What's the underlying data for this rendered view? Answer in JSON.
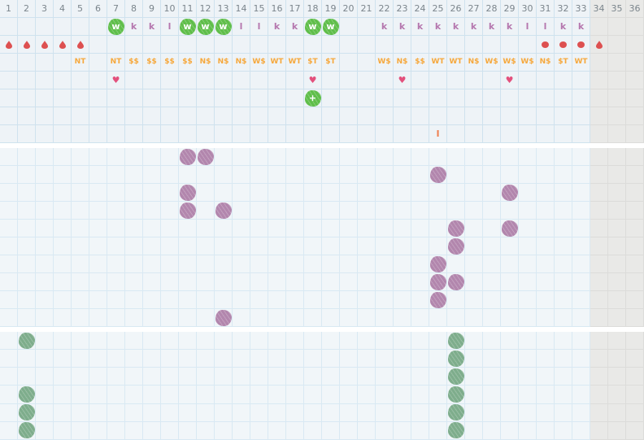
{
  "grid": {
    "days": [
      1,
      2,
      3,
      4,
      5,
      6,
      7,
      8,
      9,
      10,
      11,
      12,
      13,
      14,
      15,
      16,
      17,
      18,
      19,
      20,
      21,
      22,
      23,
      24,
      25,
      26,
      27,
      28,
      29,
      30,
      31,
      32,
      33,
      34,
      35,
      36
    ],
    "inactive_from_day": 34
  },
  "icons": {
    "heart_glyph": "♥"
  },
  "palette": {
    "cell_bg_top": "#eef3f7",
    "cell_bg": "#f1f6f9",
    "grid_line_top": "#cfe2ee",
    "grid_line": "#d9e9f3",
    "inactive_bg": "#e9e9e7",
    "inactive_line": "#dcdcda",
    "day_number": "#7b858c",
    "bright_green": "#5fbe4a",
    "mauve": "#b577ae",
    "red": "#dd5050",
    "orange": "#f6a83c",
    "pink": "#e3507c",
    "salmon": "#ef8052",
    "purple_mark": "#b286ad",
    "sage_mark": "#7ead8c"
  },
  "top_section": {
    "rows": [
      {
        "key": "day_numbers",
        "kind": "numbers",
        "cells": []
      },
      {
        "key": "cervical_fluid",
        "kind": "marks",
        "cells": [
          {
            "day": 7,
            "icon": "egg-white-blob-icon",
            "label": "w"
          },
          {
            "day": 8,
            "icon": "fluid-letter-label",
            "label": "k"
          },
          {
            "day": 9,
            "icon": "fluid-letter-label",
            "label": "k"
          },
          {
            "day": 10,
            "icon": "fluid-letter-label",
            "label": "l"
          },
          {
            "day": 11,
            "icon": "egg-white-blob-icon",
            "label": "w"
          },
          {
            "day": 12,
            "icon": "egg-white-blob-icon",
            "label": "w"
          },
          {
            "day": 13,
            "icon": "egg-white-blob-icon",
            "label": "w"
          },
          {
            "day": 14,
            "icon": "fluid-letter-label",
            "label": "l"
          },
          {
            "day": 15,
            "icon": "fluid-letter-label",
            "label": "l"
          },
          {
            "day": 16,
            "icon": "fluid-letter-label",
            "label": "k"
          },
          {
            "day": 17,
            "icon": "fluid-letter-label",
            "label": "k"
          },
          {
            "day": 18,
            "icon": "egg-white-blob-icon",
            "label": "w"
          },
          {
            "day": 19,
            "icon": "egg-white-blob-icon",
            "label": "w"
          },
          {
            "day": 22,
            "icon": "fluid-letter-label",
            "label": "k"
          },
          {
            "day": 23,
            "icon": "fluid-letter-label",
            "label": "k"
          },
          {
            "day": 24,
            "icon": "fluid-letter-label",
            "label": "k"
          },
          {
            "day": 25,
            "icon": "fluid-letter-label",
            "label": "k"
          },
          {
            "day": 26,
            "icon": "fluid-letter-label",
            "label": "k"
          },
          {
            "day": 27,
            "icon": "fluid-letter-label",
            "label": "k"
          },
          {
            "day": 28,
            "icon": "fluid-letter-label",
            "label": "k"
          },
          {
            "day": 29,
            "icon": "fluid-letter-label",
            "label": "k"
          },
          {
            "day": 30,
            "icon": "fluid-letter-label",
            "label": "l"
          },
          {
            "day": 31,
            "icon": "fluid-letter-label",
            "label": "l"
          },
          {
            "day": 32,
            "icon": "fluid-letter-label",
            "label": "k"
          },
          {
            "day": 33,
            "icon": "fluid-letter-label",
            "label": "k"
          }
        ]
      },
      {
        "key": "bleeding",
        "kind": "marks",
        "cells": [
          {
            "day": 1,
            "icon": "droplet-icon"
          },
          {
            "day": 2,
            "icon": "droplet-icon"
          },
          {
            "day": 3,
            "icon": "droplet-icon"
          },
          {
            "day": 4,
            "icon": "droplet-icon"
          },
          {
            "day": 5,
            "icon": "droplet-icon"
          },
          {
            "day": 31,
            "icon": "dot-icon"
          },
          {
            "day": 32,
            "icon": "dot-icon"
          },
          {
            "day": 33,
            "icon": "dot-icon"
          },
          {
            "day": 34,
            "icon": "droplet-icon"
          }
        ]
      },
      {
        "key": "sensation_codes",
        "kind": "marks",
        "cells": [
          {
            "day": 5,
            "icon": "code-label",
            "label": "NT"
          },
          {
            "day": 7,
            "icon": "code-label",
            "label": "NT"
          },
          {
            "day": 8,
            "icon": "code-label",
            "label": "$$"
          },
          {
            "day": 9,
            "icon": "code-label",
            "label": "$$"
          },
          {
            "day": 10,
            "icon": "code-label",
            "label": "$$"
          },
          {
            "day": 11,
            "icon": "code-label",
            "label": "$$"
          },
          {
            "day": 12,
            "icon": "code-label",
            "label": "N$"
          },
          {
            "day": 13,
            "icon": "code-label",
            "label": "N$"
          },
          {
            "day": 14,
            "icon": "code-label",
            "label": "N$"
          },
          {
            "day": 15,
            "icon": "code-label",
            "label": "W$"
          },
          {
            "day": 16,
            "icon": "code-label",
            "label": "WT"
          },
          {
            "day": 17,
            "icon": "code-label",
            "label": "WT"
          },
          {
            "day": 18,
            "icon": "code-label",
            "label": "$T"
          },
          {
            "day": 19,
            "icon": "code-label",
            "label": "$T"
          },
          {
            "day": 22,
            "icon": "code-label",
            "label": "W$"
          },
          {
            "day": 23,
            "icon": "code-label",
            "label": "N$"
          },
          {
            "day": 24,
            "icon": "code-label",
            "label": "$$"
          },
          {
            "day": 25,
            "icon": "code-label",
            "label": "WT"
          },
          {
            "day": 26,
            "icon": "code-label",
            "label": "WT"
          },
          {
            "day": 27,
            "icon": "code-label",
            "label": "N$"
          },
          {
            "day": 28,
            "icon": "code-label",
            "label": "W$"
          },
          {
            "day": 29,
            "icon": "code-label",
            "label": "W$"
          },
          {
            "day": 30,
            "icon": "code-label",
            "label": "W$"
          },
          {
            "day": 31,
            "icon": "code-label",
            "label": "N$"
          },
          {
            "day": 32,
            "icon": "code-label",
            "label": "$T"
          },
          {
            "day": 33,
            "icon": "code-label",
            "label": "WT"
          }
        ]
      },
      {
        "key": "intimacy",
        "kind": "marks",
        "cells": [
          {
            "day": 7,
            "icon": "heart-icon"
          },
          {
            "day": 18,
            "icon": "heart-icon"
          },
          {
            "day": 23,
            "icon": "heart-icon"
          },
          {
            "day": 29,
            "icon": "heart-icon"
          }
        ]
      },
      {
        "key": "positive_test",
        "kind": "marks",
        "cells": [
          {
            "day": 18,
            "icon": "positive-test-blob-icon",
            "label": "+"
          }
        ]
      },
      {
        "key": "empty_row",
        "kind": "marks",
        "cells": []
      },
      {
        "key": "note",
        "kind": "marks",
        "cells": [
          {
            "day": 25,
            "icon": "note-bar-label",
            "label": "I"
          }
        ]
      }
    ]
  },
  "middle_section": {
    "row_count": 10,
    "marks": [
      {
        "row": 1,
        "day": 11
      },
      {
        "row": 1,
        "day": 12
      },
      {
        "row": 2,
        "day": 25
      },
      {
        "row": 3,
        "day": 11
      },
      {
        "row": 3,
        "day": 29
      },
      {
        "row": 4,
        "day": 11
      },
      {
        "row": 4,
        "day": 13
      },
      {
        "row": 5,
        "day": 26
      },
      {
        "row": 5,
        "day": 29
      },
      {
        "row": 6,
        "day": 26
      },
      {
        "row": 7,
        "day": 25
      },
      {
        "row": 8,
        "day": 25
      },
      {
        "row": 8,
        "day": 26
      },
      {
        "row": 9,
        "day": 25
      },
      {
        "row": 10,
        "day": 13
      }
    ]
  },
  "bottom_section": {
    "row_count": 6,
    "marks": [
      {
        "row": 1,
        "day": 2
      },
      {
        "row": 1,
        "day": 26
      },
      {
        "row": 2,
        "day": 26
      },
      {
        "row": 3,
        "day": 26
      },
      {
        "row": 4,
        "day": 2
      },
      {
        "row": 4,
        "day": 26
      },
      {
        "row": 5,
        "day": 2
      },
      {
        "row": 5,
        "day": 26
      },
      {
        "row": 6,
        "day": 2
      },
      {
        "row": 6,
        "day": 26
      }
    ]
  }
}
